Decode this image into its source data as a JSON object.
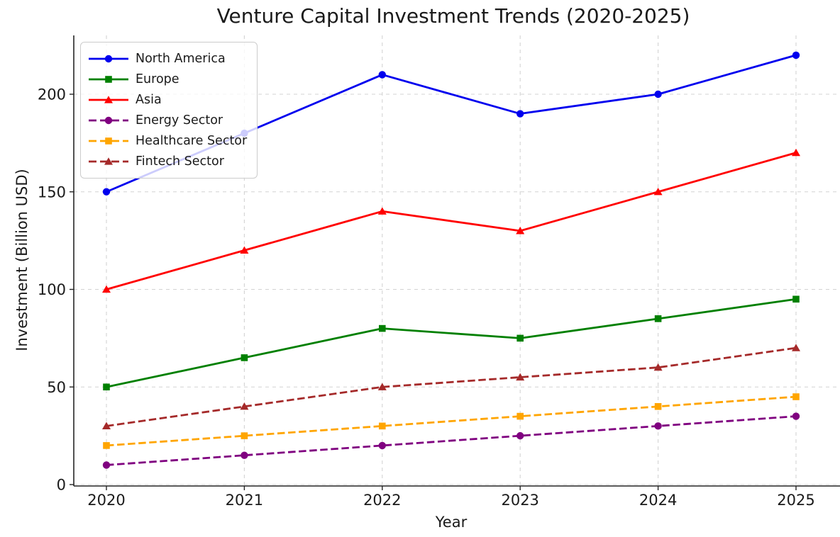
{
  "chart_data": {
    "type": "line",
    "title": "Venture Capital Investment Trends (2020-2025)",
    "xlabel": "Year",
    "ylabel": "Investment (Billion USD)",
    "x": [
      2020,
      2021,
      2022,
      2023,
      2024,
      2025
    ],
    "yticks": [
      0,
      50,
      100,
      150,
      200
    ],
    "ylim": [
      0,
      230
    ],
    "grid": true,
    "grid_style": "dashed",
    "legend_position": "upper left",
    "background_color": "#ffffff",
    "text_color": "#1a1a1a",
    "grid_color": "#d3d3d3",
    "series": [
      {
        "name": "North America",
        "values": [
          150,
          180,
          210,
          190,
          200,
          220
        ],
        "color": "#0000ee",
        "marker": "circle",
        "line_style": "solid"
      },
      {
        "name": "Europe",
        "values": [
          50,
          65,
          80,
          75,
          85,
          95
        ],
        "color": "#008000",
        "marker": "square",
        "line_style": "solid"
      },
      {
        "name": "Asia",
        "values": [
          100,
          120,
          140,
          130,
          150,
          170
        ],
        "color": "#ff0000",
        "marker": "triangle",
        "line_style": "solid"
      },
      {
        "name": "Energy Sector",
        "values": [
          10,
          15,
          20,
          25,
          30,
          35
        ],
        "color": "#800080",
        "marker": "circle",
        "line_style": "dashed"
      },
      {
        "name": "Healthcare Sector",
        "values": [
          20,
          25,
          30,
          35,
          40,
          45
        ],
        "color": "#ffa500",
        "marker": "square",
        "line_style": "dashed"
      },
      {
        "name": "Fintech Sector",
        "values": [
          30,
          40,
          50,
          55,
          60,
          70
        ],
        "color": "#a52a2a",
        "marker": "triangle",
        "line_style": "dashed"
      }
    ]
  }
}
